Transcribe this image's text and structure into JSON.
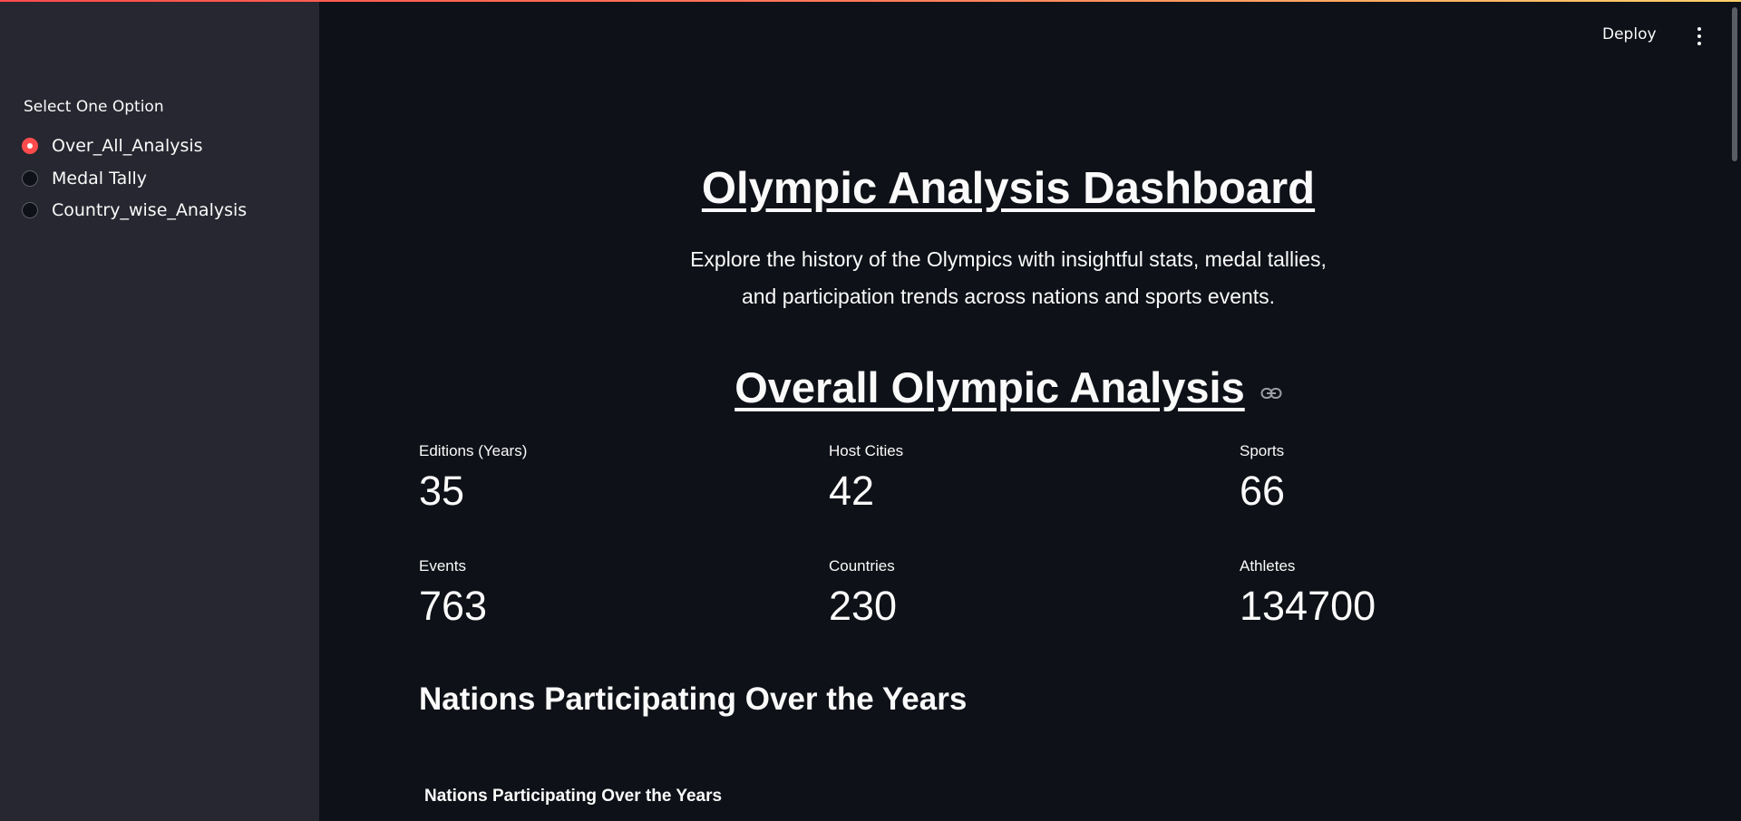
{
  "sidebar": {
    "radio_label": "Select One Option",
    "options": [
      {
        "label": "Over_All_Analysis",
        "selected": true
      },
      {
        "label": "Medal Tally",
        "selected": false
      },
      {
        "label": "Country_wise_Analysis",
        "selected": false
      }
    ]
  },
  "header": {
    "deploy_label": "Deploy"
  },
  "main": {
    "title": "Olympic Analysis Dashboard",
    "subtitle_line1": "Explore the history of the Olympics with insightful stats, medal tallies,",
    "subtitle_line2": "and participation trends across nations and sports events.",
    "section_title": "Overall Olympic Analysis",
    "metrics": [
      {
        "label": "Editions (Years)",
        "value": "35"
      },
      {
        "label": "Host Cities",
        "value": "42"
      },
      {
        "label": "Sports",
        "value": "66"
      },
      {
        "label": "Events",
        "value": "763"
      },
      {
        "label": "Countries",
        "value": "230"
      },
      {
        "label": "Athletes",
        "value": "134700"
      }
    ],
    "subsection_title": "Nations Participating Over the Years",
    "chart_title": "Nations Participating Over the Years"
  },
  "colors": {
    "accent": "#ff4b4b",
    "sidebar_bg": "#262730",
    "main_bg": "#0e1117",
    "text": "#fafafa"
  }
}
